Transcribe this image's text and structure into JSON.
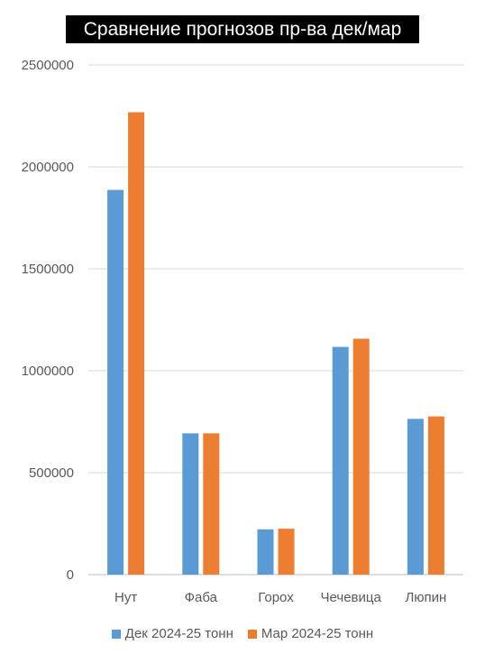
{
  "chart_data": {
    "type": "bar",
    "title": "Сравнение прогнозов пр-ва дек/мар",
    "categories": [
      "Нут",
      "Фаба",
      "Горох",
      "Чечевица",
      "Люпин"
    ],
    "series": [
      {
        "name": "Дек 2024-25 тонн",
        "color": "#5B9BD5",
        "values": [
          1887000,
          693000,
          222000,
          1117000,
          764000
        ]
      },
      {
        "name": "Мар 2024-25 тонн",
        "color": "#ED7D31",
        "values": [
          2268000,
          693000,
          225000,
          1157000,
          776000
        ]
      }
    ],
    "ylim": [
      0,
      2500000
    ],
    "yticks": [
      "0",
      "500000",
      "1000000",
      "1500000",
      "2000000",
      "2500000"
    ],
    "grid": true,
    "legend_position": "bottom"
  }
}
